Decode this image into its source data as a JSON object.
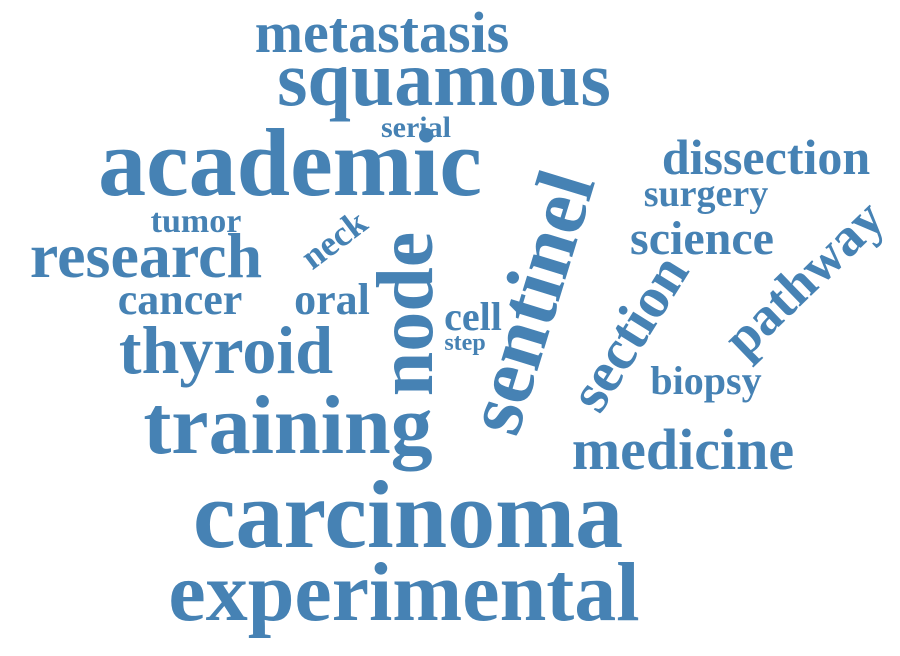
{
  "word_cloud": {
    "color": "#4682b4",
    "words": [
      {
        "text": "metastasis",
        "orientation": "horizontal"
      },
      {
        "text": "squamous",
        "orientation": "horizontal"
      },
      {
        "text": "serial",
        "orientation": "horizontal"
      },
      {
        "text": "academic",
        "orientation": "horizontal"
      },
      {
        "text": "dissection",
        "orientation": "horizontal"
      },
      {
        "text": "surgery",
        "orientation": "horizontal"
      },
      {
        "text": "tumor",
        "orientation": "horizontal"
      },
      {
        "text": "research",
        "orientation": "horizontal"
      },
      {
        "text": "science",
        "orientation": "horizontal"
      },
      {
        "text": "neck",
        "orientation": "rotated"
      },
      {
        "text": "node",
        "orientation": "vertical"
      },
      {
        "text": "sentinel",
        "orientation": "rotated"
      },
      {
        "text": "pathway",
        "orientation": "rotated"
      },
      {
        "text": "cancer",
        "orientation": "horizontal"
      },
      {
        "text": "oral",
        "orientation": "horizontal"
      },
      {
        "text": "cell",
        "orientation": "horizontal"
      },
      {
        "text": "step",
        "orientation": "horizontal"
      },
      {
        "text": "section",
        "orientation": "rotated"
      },
      {
        "text": "thyroid",
        "orientation": "horizontal"
      },
      {
        "text": "biopsy",
        "orientation": "horizontal"
      },
      {
        "text": "training",
        "orientation": "horizontal"
      },
      {
        "text": "medicine",
        "orientation": "horizontal"
      },
      {
        "text": "carcinoma",
        "orientation": "horizontal"
      },
      {
        "text": "experimental",
        "orientation": "horizontal"
      }
    ]
  }
}
